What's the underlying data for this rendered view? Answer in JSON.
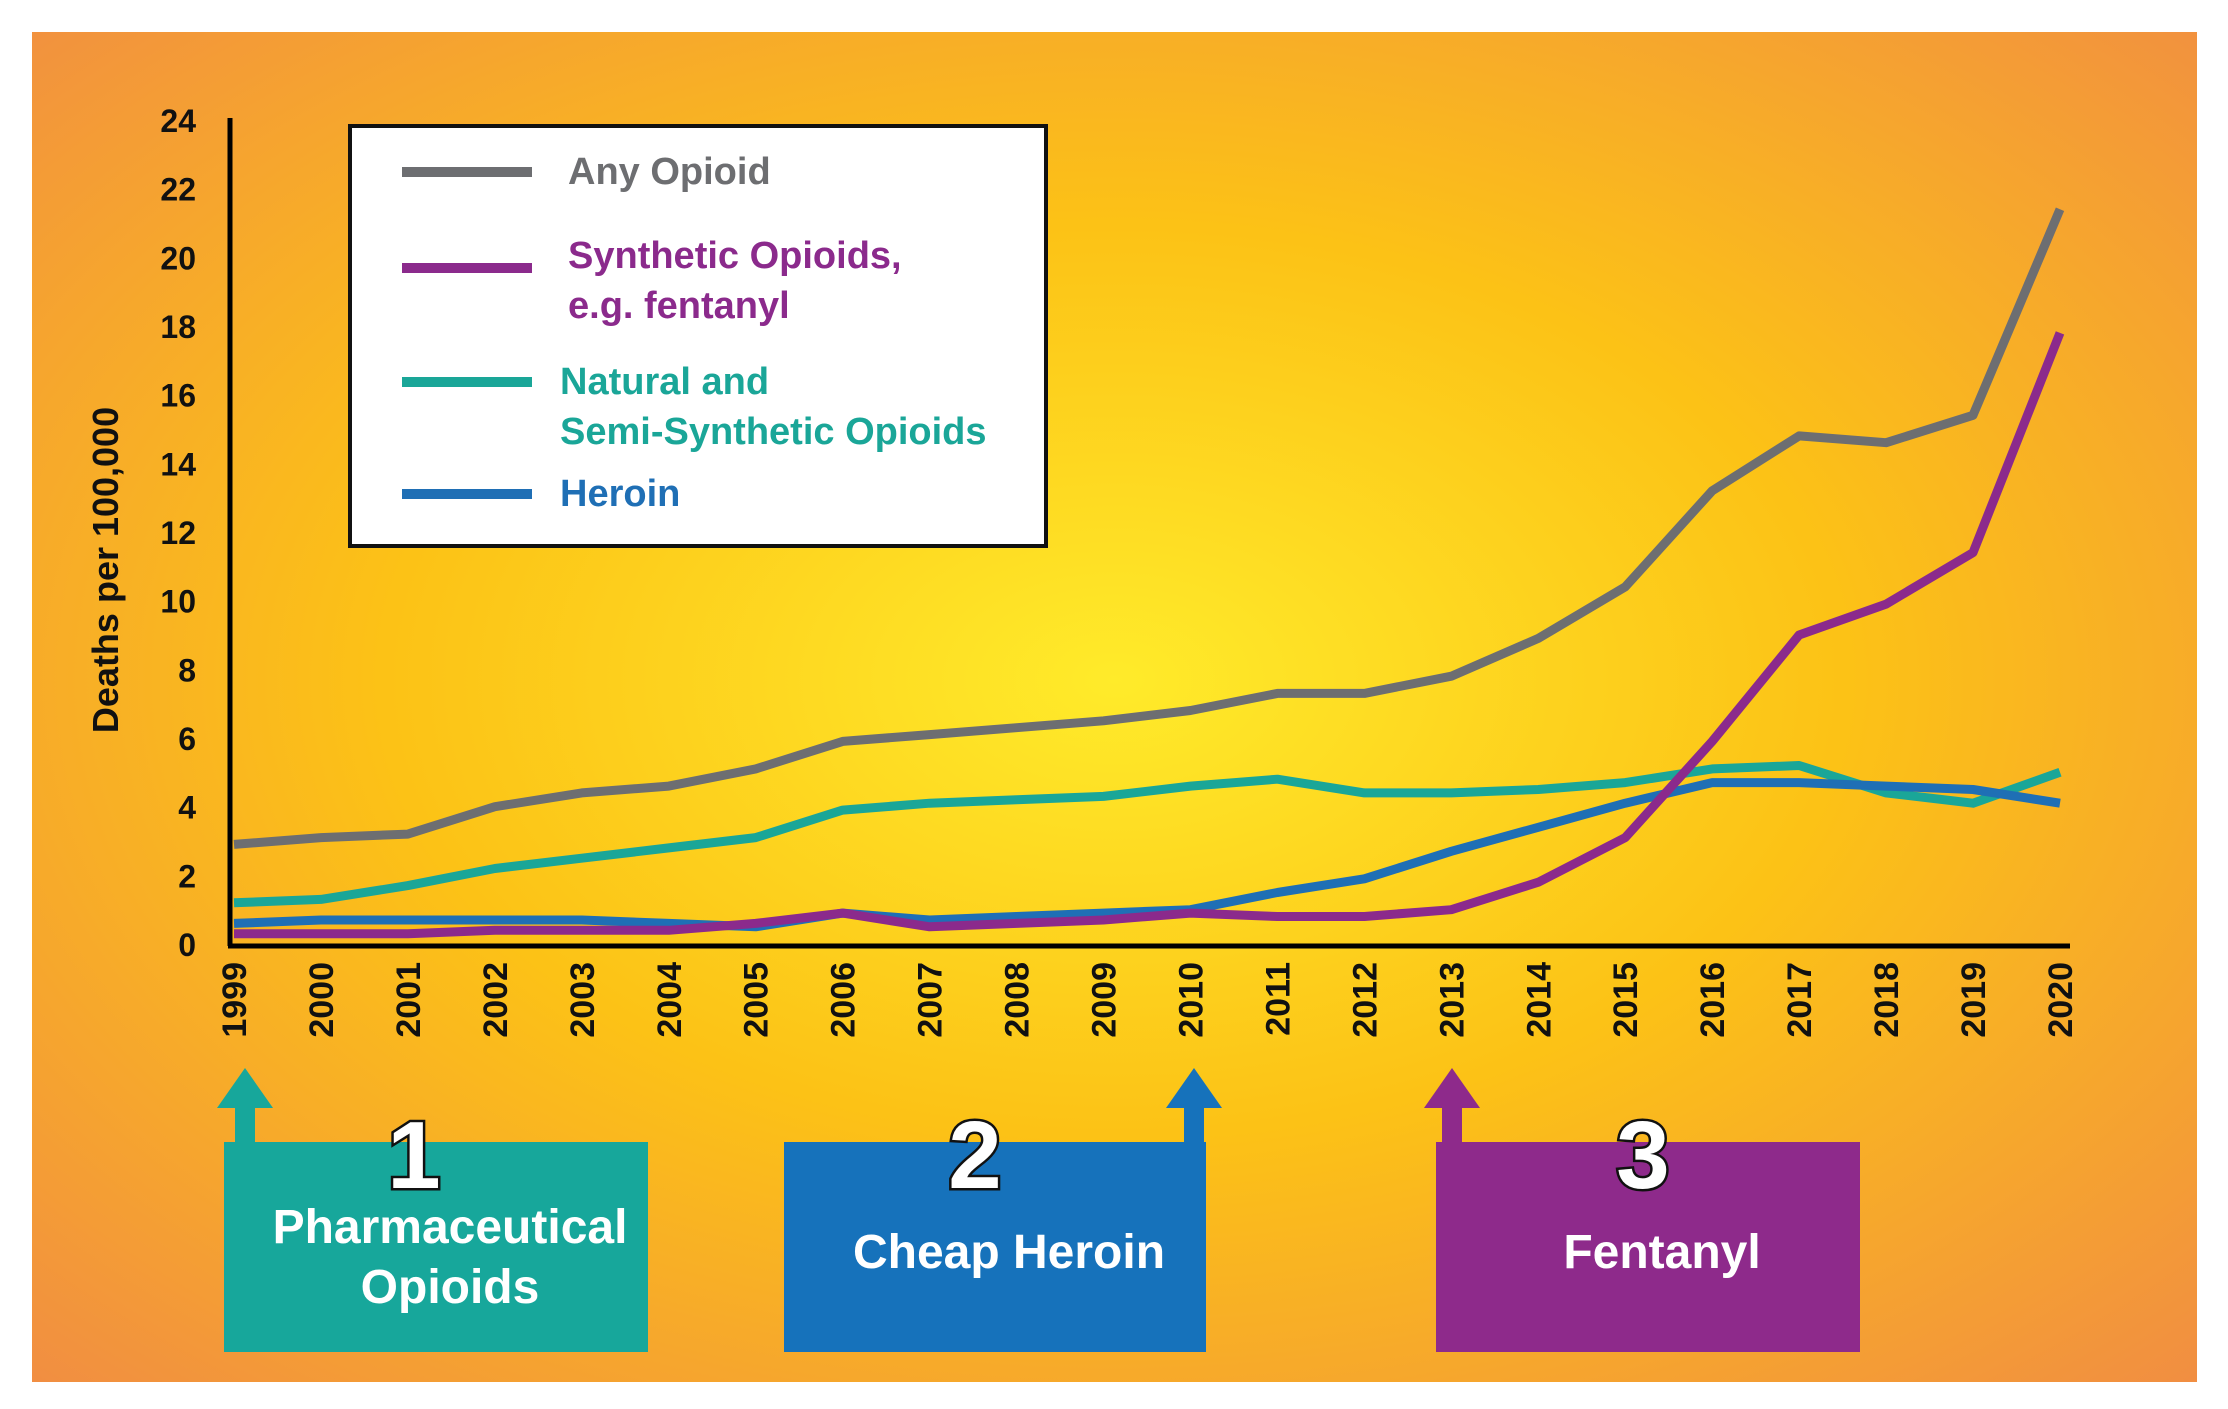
{
  "chart_data": {
    "type": "line",
    "title": "",
    "xlabel": "",
    "ylabel": "Deaths per 100,000",
    "ylim": [
      0,
      24
    ],
    "yticks": [
      0,
      2,
      4,
      6,
      8,
      10,
      12,
      14,
      16,
      18,
      20,
      22,
      24
    ],
    "x": [
      "1999",
      "2000",
      "2001",
      "2002",
      "2003",
      "2004",
      "2005",
      "2006",
      "2007",
      "2008",
      "2009",
      "2010",
      "2011",
      "2012",
      "2013",
      "2014",
      "2015",
      "2016",
      "2017",
      "2018",
      "2019",
      "2020"
    ],
    "grid": false,
    "legend_position": "top-left",
    "series": [
      {
        "name": "Any Opioid",
        "color": "#6d6e71",
        "values": [
          2.9,
          3.1,
          3.2,
          4.0,
          4.4,
          4.6,
          5.1,
          5.9,
          6.1,
          6.3,
          6.5,
          6.8,
          7.3,
          7.3,
          7.8,
          8.9,
          10.4,
          13.2,
          14.8,
          14.6,
          15.4,
          21.4
        ]
      },
      {
        "name": "Synthetic Opioids, e.g. fentanyl",
        "color": "#8b2a8c",
        "values": [
          0.3,
          0.3,
          0.3,
          0.4,
          0.4,
          0.4,
          0.6,
          0.9,
          0.5,
          0.6,
          0.7,
          0.9,
          0.8,
          0.8,
          1.0,
          1.8,
          3.1,
          5.9,
          9.0,
          9.9,
          11.4,
          17.8
        ]
      },
      {
        "name": "Natural and Semi-Synthetic Opioids",
        "color": "#1aa698",
        "values": [
          1.2,
          1.3,
          1.7,
          2.2,
          2.5,
          2.8,
          3.1,
          3.9,
          4.1,
          4.2,
          4.3,
          4.6,
          4.8,
          4.4,
          4.4,
          4.5,
          4.7,
          5.1,
          5.2,
          4.4,
          4.1,
          5.0
        ]
      },
      {
        "name": "Heroin",
        "color": "#1f6fb5",
        "values": [
          0.6,
          0.7,
          0.7,
          0.7,
          0.7,
          0.6,
          0.5,
          0.9,
          0.7,
          0.8,
          0.9,
          1.0,
          1.5,
          1.9,
          2.7,
          3.4,
          4.1,
          4.7,
          4.7,
          4.6,
          4.5,
          4.1
        ]
      }
    ],
    "legend_lines": [
      {
        "series": "Any Opioid",
        "lines": [
          "Any Opioid"
        ]
      },
      {
        "series": "Synthetic Opioids, e.g. fentanyl",
        "lines": [
          "Synthetic Opioids,",
          "e.g. fentanyl"
        ]
      },
      {
        "series": "Natural and Semi-Synthetic Opioids",
        "lines": [
          "Natural and",
          "Semi-Synthetic Opioids"
        ]
      },
      {
        "series": "Heroin",
        "lines": [
          "Heroin"
        ]
      }
    ],
    "annotations": [
      {
        "number": "1",
        "lines": [
          "Pharmaceutical",
          "Opioids"
        ],
        "year": "1999",
        "color": "#17a79b"
      },
      {
        "number": "2",
        "lines": [
          "Cheap Heroin"
        ],
        "year": "2010",
        "color": "#1672bb"
      },
      {
        "number": "3",
        "lines": [
          "Fentanyl"
        ],
        "year": "2013",
        "color": "#8e2a8b"
      }
    ]
  },
  "colors": {
    "background_center": "#ffeb2a",
    "background_mid": "#fcc216",
    "background_edge": "#f08a45",
    "axis": "#000000"
  }
}
